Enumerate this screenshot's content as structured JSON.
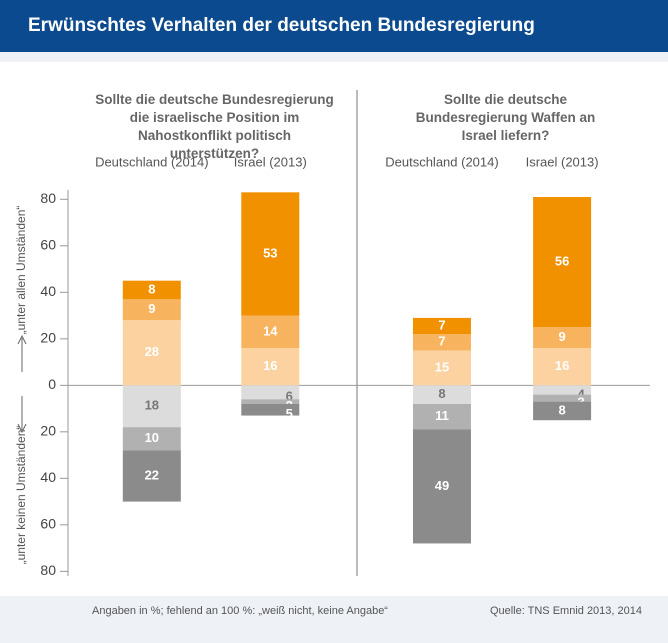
{
  "header": {
    "title": "Erwünschtes Verhalten der deutschen Bundesregierung"
  },
  "footnote": "Angaben in %; fehlend an 100 %: „weiß nicht, keine Angabe“",
  "source": "Quelle: TNS Emnid 2013, 2014",
  "chart_data": [
    {
      "type": "stacked-bar",
      "title": "Sollte die deutsche Bundesregierung die israelische Position im Nahostkonflikt politisch unterstützen?",
      "y_label_top": "„unter allen Umständen“",
      "y_label_bottom": "„unter keinen Umständen“",
      "ylim": [
        -82,
        84
      ],
      "yticks": [
        {
          "value": -80,
          "label": "80"
        },
        {
          "value": -60,
          "label": "60"
        },
        {
          "value": -40,
          "label": "40"
        },
        {
          "value": -20,
          "label": "20"
        },
        0,
        20,
        40,
        60,
        80
      ],
      "categories": [
        "Deutschland (2014)",
        "Israel (2013)"
      ],
      "series": [
        {
          "color": "#fcd2a0",
          "values": [
            28,
            16
          ]
        },
        {
          "color": "#f8b35f",
          "values": [
            9,
            14
          ]
        },
        {
          "color": "#f29100",
          "values": [
            8,
            53
          ]
        },
        {
          "color": "#dcdcdc",
          "values": [
            -18,
            -6
          ],
          "value_labels": [
            "18",
            "6"
          ]
        },
        {
          "color": "#b1b1b1",
          "values": [
            -10,
            -2
          ],
          "value_labels": [
            "10",
            "2"
          ]
        },
        {
          "color": "#8b8b8b",
          "values": [
            -22,
            -5
          ],
          "value_labels": [
            "22",
            "5"
          ]
        }
      ]
    },
    {
      "type": "stacked-bar",
      "title": "Sollte die deutsche Bundesregierung Waffen an Israel liefern?",
      "categories": [
        "Deutschland (2014)",
        "Israel (2013)"
      ],
      "series": [
        {
          "color": "#fcd2a0",
          "values": [
            15,
            16
          ]
        },
        {
          "color": "#f8b35f",
          "values": [
            7,
            9
          ]
        },
        {
          "color": "#f29100",
          "values": [
            7,
            56
          ]
        },
        {
          "color": "#dcdcdc",
          "values": [
            -8,
            -4
          ],
          "value_labels": [
            "8",
            "4"
          ]
        },
        {
          "color": "#b1b1b1",
          "values": [
            -11,
            -3
          ],
          "value_labels": [
            "11",
            "3"
          ]
        },
        {
          "color": "#8b8b8b",
          "values": [
            -49,
            -8
          ],
          "value_labels": [
            "49",
            "8"
          ]
        }
      ]
    }
  ]
}
